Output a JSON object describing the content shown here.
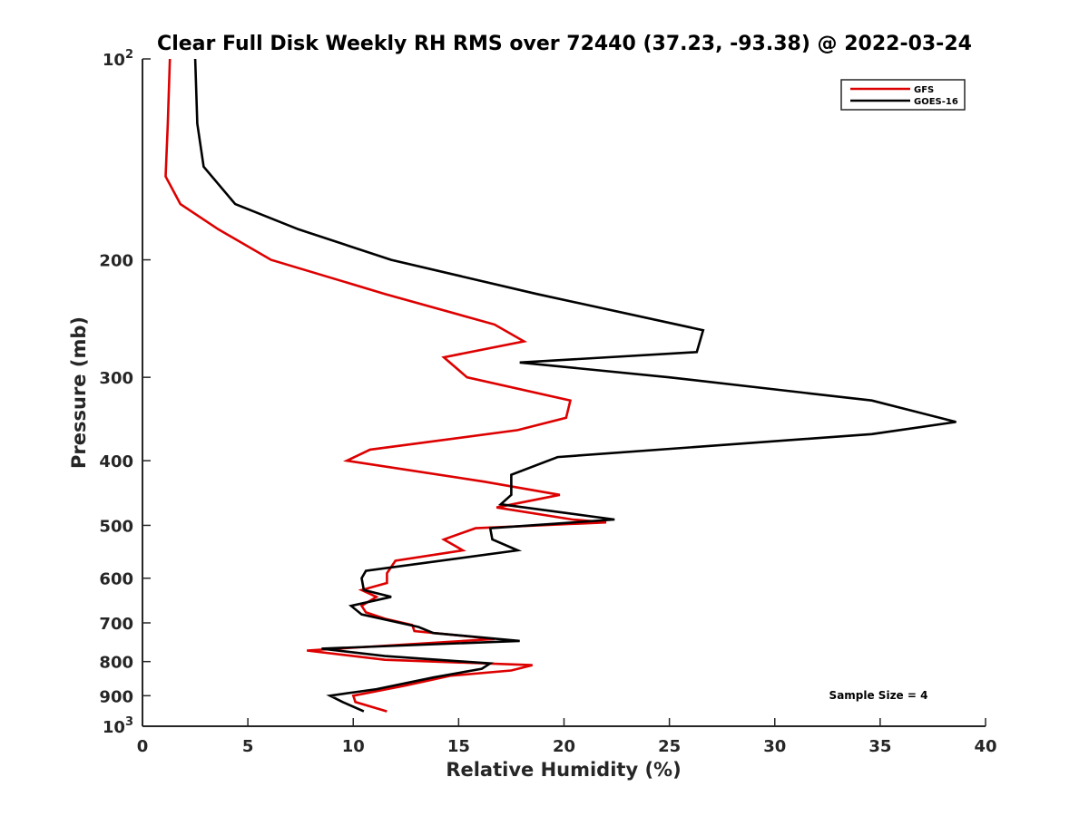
{
  "chart_data": {
    "type": "line",
    "title": "Clear Full Disk Weekly RH RMS over 72440 (37.23, -93.38) @ 2022-03-24",
    "xlabel": "Relative Humidity (%)",
    "ylabel": "Pressure (mb)",
    "xlim": [
      0,
      40
    ],
    "ylim": [
      100,
      1000
    ],
    "y_scale": "log",
    "y_reversed": true,
    "grid": false,
    "legend_position": "top-right",
    "annotation": "Sample Size = 4",
    "x_ticks": [
      0,
      5,
      10,
      15,
      20,
      25,
      30,
      35,
      40
    ],
    "x_tick_labels": [
      "0",
      "5",
      "10",
      "15",
      "20",
      "25",
      "30",
      "35",
      "40"
    ],
    "y_ticks": [
      100,
      200,
      300,
      400,
      500,
      600,
      700,
      800,
      900,
      1000
    ],
    "y_tick_labels": [
      {
        "base": "10",
        "exp": "2"
      },
      {
        "base": "200"
      },
      {
        "base": "300"
      },
      {
        "base": "400"
      },
      {
        "base": "500"
      },
      {
        "base": "600"
      },
      {
        "base": "700"
      },
      {
        "base": "800"
      },
      {
        "base": "900"
      },
      {
        "base": "10",
        "exp": "3"
      }
    ],
    "series": [
      {
        "name": "GFS",
        "color": "#dd0000",
        "points": [
          [
            1.3,
            100
          ],
          [
            1.2,
            125
          ],
          [
            1.1,
            150
          ],
          [
            1.8,
            165
          ],
          [
            3.6,
            180
          ],
          [
            6.1,
            200
          ],
          [
            11.5,
            225
          ],
          [
            16.7,
            250
          ],
          [
            18.1,
            265
          ],
          [
            14.3,
            280
          ],
          [
            15.4,
            300
          ],
          [
            20.3,
            325
          ],
          [
            20.1,
            345
          ],
          [
            17.8,
            360
          ],
          [
            10.8,
            385
          ],
          [
            9.7,
            400
          ],
          [
            16.2,
            430
          ],
          [
            19.8,
            450
          ],
          [
            16.8,
            470
          ],
          [
            20.4,
            490
          ],
          [
            22.0,
            495
          ],
          [
            15.8,
            505
          ],
          [
            14.3,
            525
          ],
          [
            15.2,
            545
          ],
          [
            12.0,
            565
          ],
          [
            11.6,
            590
          ],
          [
            11.6,
            610
          ],
          [
            10.4,
            625
          ],
          [
            11.1,
            640
          ],
          [
            10.4,
            660
          ],
          [
            10.6,
            675
          ],
          [
            11.5,
            690
          ],
          [
            12.8,
            705
          ],
          [
            12.9,
            720
          ],
          [
            16.7,
            740
          ],
          [
            7.8,
            770
          ],
          [
            11.5,
            795
          ],
          [
            18.5,
            810
          ],
          [
            17.5,
            825
          ],
          [
            14.6,
            840
          ],
          [
            12.4,
            870
          ],
          [
            10.0,
            900
          ],
          [
            10.1,
            920
          ],
          [
            11.6,
            950
          ]
        ]
      },
      {
        "name": "GOES-16",
        "color": "#000000",
        "points": [
          [
            2.5,
            100
          ],
          [
            2.6,
            125
          ],
          [
            2.9,
            145
          ],
          [
            4.4,
            165
          ],
          [
            7.4,
            180
          ],
          [
            11.8,
            200
          ],
          [
            18.7,
            225
          ],
          [
            26.6,
            255
          ],
          [
            26.3,
            275
          ],
          [
            17.9,
            285
          ],
          [
            25.0,
            300
          ],
          [
            34.6,
            325
          ],
          [
            38.6,
            350
          ],
          [
            34.6,
            365
          ],
          [
            19.7,
            395
          ],
          [
            17.5,
            420
          ],
          [
            17.5,
            450
          ],
          [
            17.0,
            465
          ],
          [
            22.4,
            490
          ],
          [
            16.5,
            505
          ],
          [
            16.6,
            525
          ],
          [
            17.8,
            545
          ],
          [
            10.6,
            585
          ],
          [
            10.4,
            600
          ],
          [
            10.5,
            625
          ],
          [
            11.8,
            640
          ],
          [
            9.9,
            660
          ],
          [
            10.4,
            680
          ],
          [
            13.1,
            710
          ],
          [
            13.8,
            725
          ],
          [
            17.9,
            745
          ],
          [
            8.5,
            765
          ],
          [
            11.5,
            785
          ],
          [
            16.5,
            805
          ],
          [
            16.1,
            820
          ],
          [
            13.8,
            845
          ],
          [
            11.1,
            880
          ],
          [
            8.9,
            900
          ],
          [
            9.5,
            920
          ],
          [
            10.5,
            950
          ]
        ]
      }
    ]
  }
}
